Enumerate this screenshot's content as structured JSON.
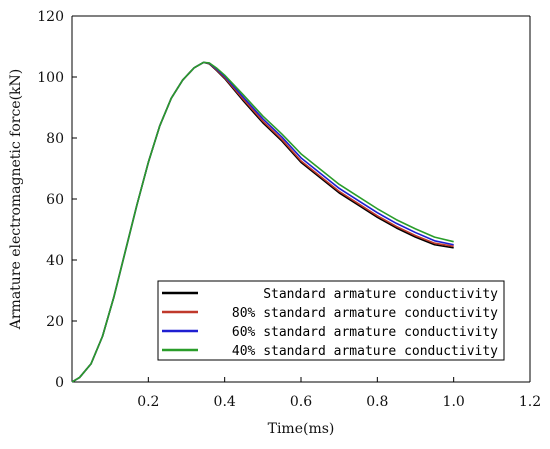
{
  "chart_data": {
    "type": "line",
    "xlabel": "Time(ms)",
    "ylabel": "Armature electromagnetic force(kN)",
    "xlim": [
      0,
      1.2
    ],
    "ylim": [
      0,
      120
    ],
    "x_ticks": [
      0.2,
      0.4,
      0.6,
      0.8,
      1.0,
      1.2
    ],
    "x_tick_labels": [
      "0.2",
      "0.4",
      "0.6",
      "0.8",
      "1.0",
      "1.2"
    ],
    "y_ticks": [
      0,
      20,
      40,
      60,
      80,
      100,
      120
    ],
    "y_tick_labels": [
      "0",
      "20",
      "40",
      "60",
      "80",
      "100",
      "120"
    ],
    "legend_position": "bottom-right",
    "series": [
      {
        "name": "Standard armature conductivity",
        "color": "#000000",
        "x": [
          0,
          0.02,
          0.05,
          0.08,
          0.11,
          0.14,
          0.17,
          0.2,
          0.23,
          0.26,
          0.29,
          0.32,
          0.345,
          0.36,
          0.38,
          0.4,
          0.45,
          0.5,
          0.55,
          0.6,
          0.65,
          0.7,
          0.75,
          0.8,
          0.85,
          0.9,
          0.95,
          1.0
        ],
        "y": [
          0,
          1.5,
          6,
          15,
          28,
          43,
          58,
          72,
          84,
          93,
          99,
          103,
          104.8,
          104.3,
          102,
          99.5,
          92,
          85,
          79,
          72,
          67,
          62,
          58,
          54,
          50.5,
          47.5,
          45,
          44
        ]
      },
      {
        "name": "80% standard armature conductivity",
        "color": "#c0392b",
        "x": [
          0,
          0.02,
          0.05,
          0.08,
          0.11,
          0.14,
          0.17,
          0.2,
          0.23,
          0.26,
          0.29,
          0.32,
          0.345,
          0.36,
          0.38,
          0.4,
          0.45,
          0.5,
          0.55,
          0.6,
          0.65,
          0.7,
          0.75,
          0.8,
          0.85,
          0.9,
          0.95,
          1.0
        ],
        "y": [
          0,
          1.5,
          6,
          15,
          28,
          43,
          58,
          72,
          84,
          93,
          99,
          103,
          104.8,
          104.4,
          102.2,
          99.8,
          92.5,
          85.5,
          79.5,
          72.5,
          67.5,
          62.5,
          58.5,
          54.5,
          51,
          48,
          45.5,
          44.5
        ]
      },
      {
        "name": "60% standard armature conductivity",
        "color": "#1f1fd1",
        "x": [
          0,
          0.02,
          0.05,
          0.08,
          0.11,
          0.14,
          0.17,
          0.2,
          0.23,
          0.26,
          0.29,
          0.32,
          0.345,
          0.36,
          0.38,
          0.4,
          0.45,
          0.5,
          0.55,
          0.6,
          0.65,
          0.7,
          0.75,
          0.8,
          0.85,
          0.9,
          0.95,
          1.0
        ],
        "y": [
          0,
          1.5,
          6,
          15,
          28,
          43,
          58,
          72,
          84,
          93,
          99,
          103,
          104.8,
          104.5,
          102.5,
          100.2,
          93.2,
          86.3,
          80.3,
          73.5,
          68.5,
          63.5,
          59.5,
          55.5,
          52,
          49,
          46.3,
          45
        ]
      },
      {
        "name": "40% standard armature conductivity",
        "color": "#2a9d2a",
        "x": [
          0,
          0.02,
          0.05,
          0.08,
          0.11,
          0.14,
          0.17,
          0.2,
          0.23,
          0.26,
          0.29,
          0.32,
          0.345,
          0.36,
          0.38,
          0.4,
          0.45,
          0.5,
          0.55,
          0.6,
          0.65,
          0.7,
          0.75,
          0.8,
          0.85,
          0.9,
          0.95,
          1.0
        ],
        "y": [
          0,
          1.5,
          6,
          15,
          28,
          43,
          58,
          72,
          84,
          93,
          99,
          103,
          104.8,
          104.6,
          102.8,
          100.6,
          94,
          87.2,
          81.3,
          74.8,
          69.8,
          64.8,
          60.8,
          56.8,
          53.2,
          50.2,
          47.5,
          46
        ]
      }
    ]
  }
}
